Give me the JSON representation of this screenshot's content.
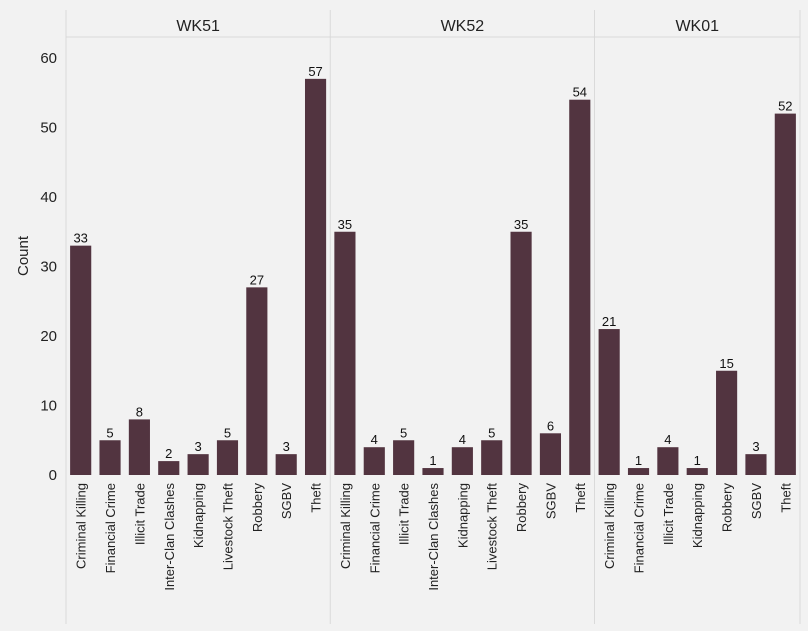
{
  "colors": {
    "bar": "#523440",
    "background": "#f2f2f2",
    "gridline": "#d9d9d9",
    "text": "#222222"
  },
  "chart_data": {
    "type": "bar",
    "title": "",
    "xlabel": "",
    "ylabel": "Count",
    "ylim": [
      0,
      60
    ],
    "yticks": [
      0,
      10,
      20,
      30,
      40,
      50,
      60
    ],
    "grid": false,
    "data_labels": true,
    "facets": [
      {
        "name": "WK51",
        "categories": [
          "Criminal Killing",
          "Financial Crime",
          "Illicit Trade",
          "Inter-Clan Clashes",
          "Kidnapping",
          "Livestock Theft",
          "Robbery",
          "SGBV",
          "Theft"
        ],
        "values": [
          33,
          5,
          8,
          2,
          3,
          5,
          27,
          3,
          57
        ]
      },
      {
        "name": "WK52",
        "categories": [
          "Criminal Killing",
          "Financial Crime",
          "Illicit Trade",
          "Inter-Clan Clashes",
          "Kidnapping",
          "Livestock Theft",
          "Robbery",
          "SGBV",
          "Theft"
        ],
        "values": [
          35,
          4,
          5,
          1,
          4,
          5,
          35,
          6,
          54
        ]
      },
      {
        "name": "WK01",
        "categories": [
          "Criminal Killing",
          "Financial Crime",
          "Illicit Trade",
          "Kidnapping",
          "Robbery",
          "SGBV",
          "Theft"
        ],
        "values": [
          21,
          1,
          4,
          1,
          15,
          3,
          52
        ]
      }
    ]
  }
}
